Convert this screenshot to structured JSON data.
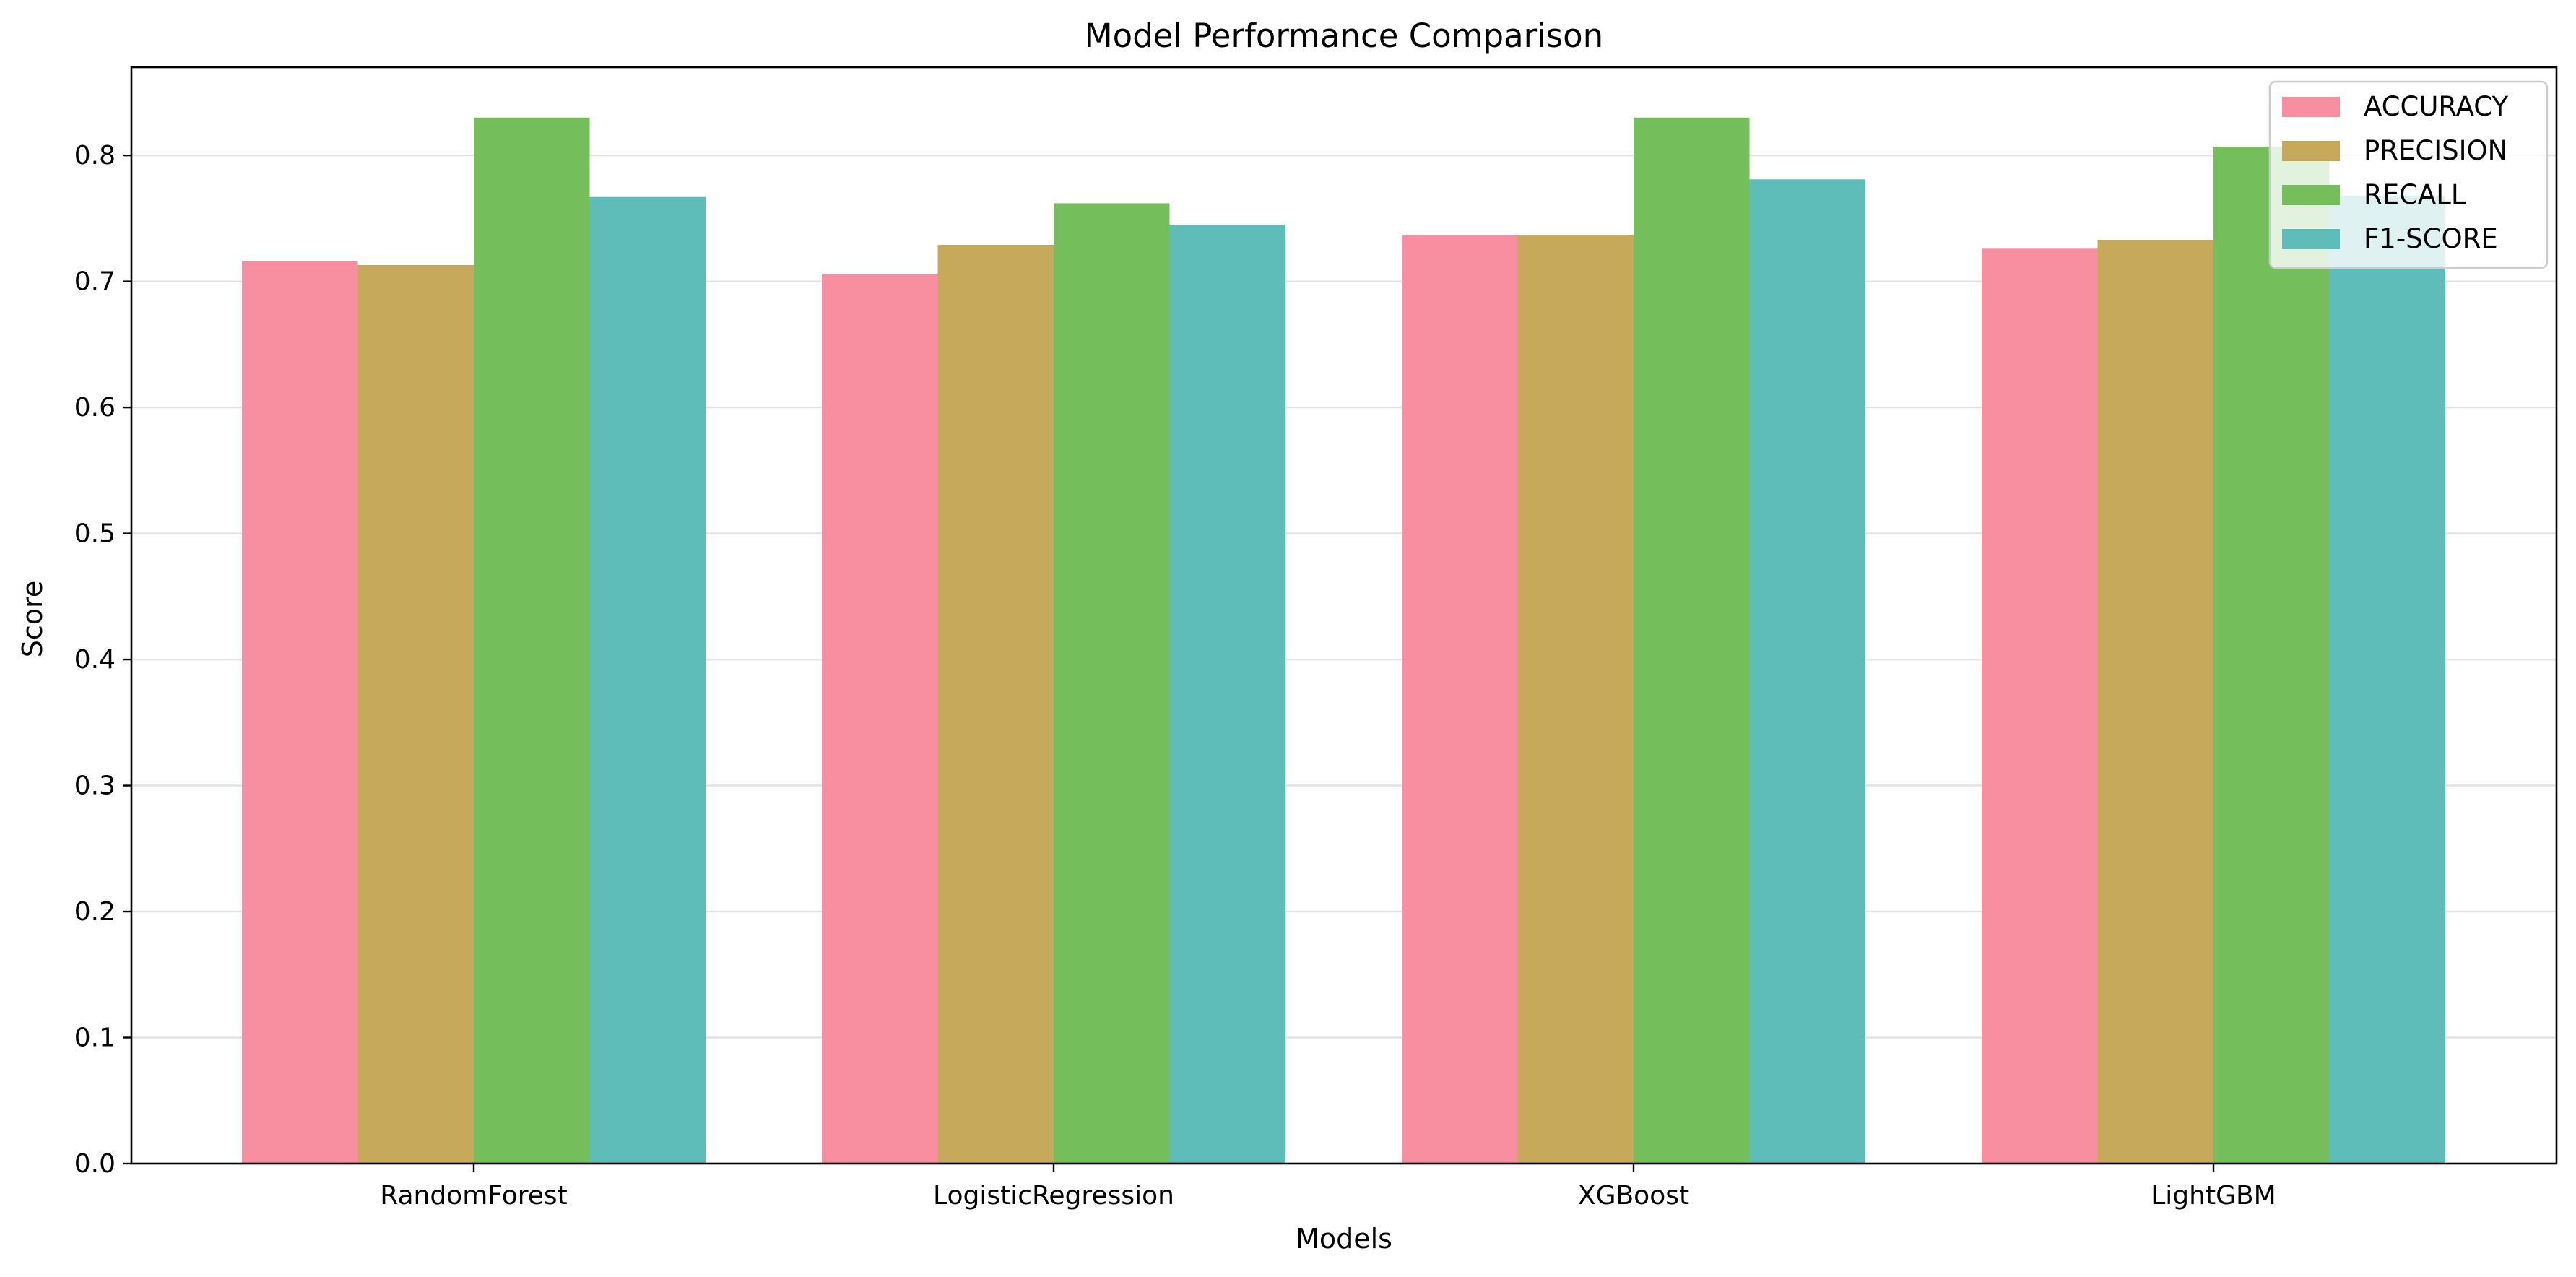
{
  "chart_data": {
    "type": "bar",
    "title": "Model Performance Comparison",
    "xlabel": "Models",
    "ylabel": "Score",
    "categories": [
      "RandomForest",
      "LogisticRegression",
      "XGBoost",
      "LightGBM"
    ],
    "series": [
      {
        "name": "ACCURACY",
        "color": "#f78fa1",
        "values": [
          0.716,
          0.706,
          0.737,
          0.726
        ]
      },
      {
        "name": "PRECISION",
        "color": "#c6a95a",
        "values": [
          0.713,
          0.729,
          0.737,
          0.733
        ]
      },
      {
        "name": "RECALL",
        "color": "#74bf5c",
        "values": [
          0.83,
          0.762,
          0.83,
          0.807
        ]
      },
      {
        "name": "F1-SCORE",
        "color": "#5ebdb8",
        "values": [
          0.767,
          0.745,
          0.781,
          0.768
        ]
      }
    ],
    "ylim": [
      0,
      0.87
    ],
    "yticks": [
      0.0,
      0.1,
      0.2,
      0.3,
      0.4,
      0.5,
      0.6,
      0.7,
      0.8
    ],
    "ytick_labels": [
      "0.0",
      "0.1",
      "0.2",
      "0.3",
      "0.4",
      "0.5",
      "0.6",
      "0.7",
      "0.8"
    ],
    "grid": "y",
    "legend_position": "top-right"
  }
}
